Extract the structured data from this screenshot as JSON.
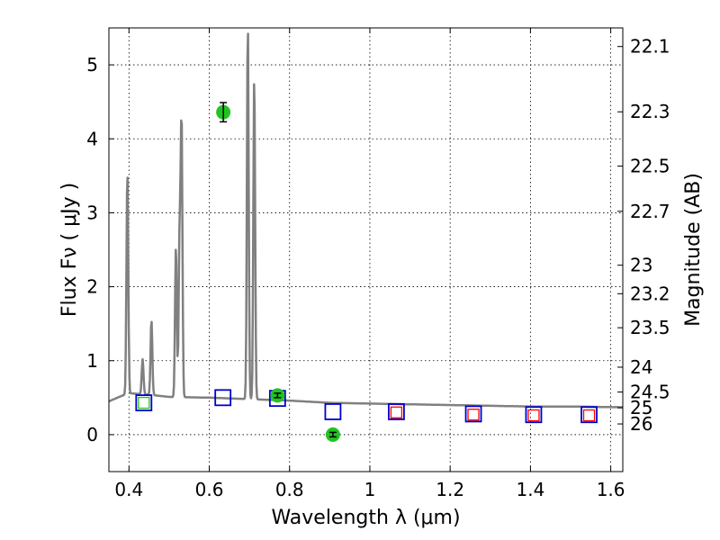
{
  "chart_data": {
    "type": "scatter",
    "xlabel": "Wavelength  λ (μm)",
    "ylabel": "Flux  Fν  ( μJy )",
    "ylabel_right": "Magnitude (AB)",
    "xlim": [
      0.35,
      1.63
    ],
    "ylim": [
      -0.5,
      5.5
    ],
    "x_ticks": [
      0.4,
      0.6,
      0.8,
      1.0,
      1.2,
      1.4,
      1.6
    ],
    "x_tick_labels": [
      "0.4",
      "0.6",
      "0.8",
      "1",
      "1.2",
      "1.4",
      "1.6"
    ],
    "y_ticks": [
      0,
      1,
      2,
      3,
      4,
      5
    ],
    "y_tick_labels": [
      "0",
      "1",
      "2",
      "3",
      "4",
      "5"
    ],
    "right_ticks": [
      {
        "label": "22.1",
        "mag": 22.1
      },
      {
        "label": "22.3",
        "mag": 22.3
      },
      {
        "label": "22.5",
        "mag": 22.5
      },
      {
        "label": "22.7",
        "mag": 22.7
      },
      {
        "label": "23",
        "mag": 23.0
      },
      {
        "label": "23.2",
        "mag": 23.2
      },
      {
        "label": "23.5",
        "mag": 23.5
      },
      {
        "label": "24",
        "mag": 24.0
      },
      {
        "label": "24.5",
        "mag": 24.5
      },
      {
        "label": "25",
        "mag": 25.0
      },
      {
        "label": "26",
        "mag": 26.0
      }
    ],
    "grid": true,
    "colors": {
      "spectrum": "#808080",
      "observed": "#22c322",
      "model_blue": "#0000cc",
      "model_red": "#ff0000"
    },
    "spectrum": {
      "continuum": [
        [
          0.35,
          0.45
        ],
        [
          0.38,
          0.52
        ],
        [
          0.4,
          0.56
        ],
        [
          0.45,
          0.54
        ],
        [
          0.5,
          0.51
        ],
        [
          0.6,
          0.5
        ],
        [
          0.7,
          0.48
        ],
        [
          0.8,
          0.46
        ],
        [
          0.9,
          0.43
        ],
        [
          1.0,
          0.42
        ],
        [
          1.1,
          0.41
        ],
        [
          1.2,
          0.4
        ],
        [
          1.3,
          0.39
        ],
        [
          1.4,
          0.38
        ],
        [
          1.5,
          0.38
        ],
        [
          1.63,
          0.37
        ]
      ],
      "lines": [
        {
          "x": 0.396,
          "peak": 3.55
        },
        {
          "x": 0.434,
          "peak": 1.02
        },
        {
          "x": 0.456,
          "peak": 1.55
        },
        {
          "x": 0.517,
          "peak": 2.55
        },
        {
          "x": 0.526,
          "peak": 2.65
        },
        {
          "x": 0.531,
          "peak": 4.2
        },
        {
          "x": 0.696,
          "peak": 5.55
        },
        {
          "x": 0.712,
          "peak": 4.85
        }
      ]
    },
    "observed": [
      {
        "x": 0.635,
        "y": 4.36,
        "err": 0.13
      },
      {
        "x": 0.77,
        "y": 0.53,
        "err": 0.03
      },
      {
        "x": 0.908,
        "y": 0.0,
        "err": 0.03
      }
    ],
    "model_blue": [
      {
        "x": 0.437,
        "y": 0.43
      },
      {
        "x": 0.634,
        "y": 0.5
      },
      {
        "x": 0.77,
        "y": 0.49
      },
      {
        "x": 0.908,
        "y": 0.31
      },
      {
        "x": 1.066,
        "y": 0.31
      },
      {
        "x": 1.258,
        "y": 0.28
      },
      {
        "x": 1.408,
        "y": 0.27
      },
      {
        "x": 1.546,
        "y": 0.27
      }
    ],
    "model_red": [
      {
        "x": 1.066,
        "y": 0.3
      },
      {
        "x": 1.258,
        "y": 0.27
      },
      {
        "x": 1.408,
        "y": 0.26
      },
      {
        "x": 1.546,
        "y": 0.26
      }
    ],
    "model_green": [
      {
        "x": 0.437,
        "y": 0.43
      }
    ]
  }
}
